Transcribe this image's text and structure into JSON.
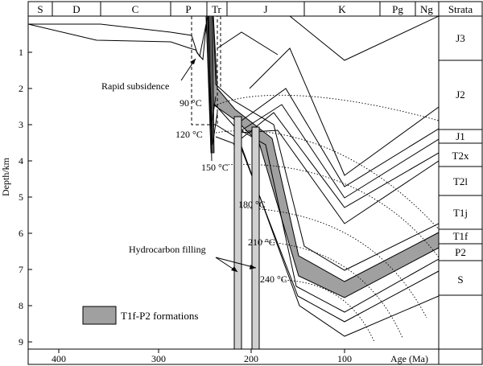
{
  "periods": [
    "S",
    "D",
    "C",
    "P",
    "Tr",
    "J",
    "K",
    "Pg",
    "Ng"
  ],
  "strata_header": "Strata",
  "strata": [
    "J3",
    "J2",
    "J1",
    "T2x",
    "T2l",
    "T1j",
    "T1f",
    "P2",
    "S"
  ],
  "depth_ticks": [
    "1",
    "2",
    "3",
    "4",
    "5",
    "6",
    "7",
    "8",
    "9"
  ],
  "age_ticks": [
    "400",
    "300",
    "200",
    "100"
  ],
  "y_axis_label": "Depth/km",
  "x_axis_label": "Age (Ma)",
  "annotations": {
    "rapid_subsidence": "Rapid subsidence",
    "hydrocarbon_filling": "Hydrocarbon filling"
  },
  "isotherms": [
    "90 °C",
    "120 °C",
    "150 °C",
    "180 °C",
    "210 °C",
    "240 °C"
  ],
  "legend": {
    "label": "T1f-P2 formations",
    "swatch_color": "#a0a0a0"
  },
  "colors": {
    "formation_fill": "#a0a0a0",
    "filling_bar": "#d0d0d0"
  }
}
